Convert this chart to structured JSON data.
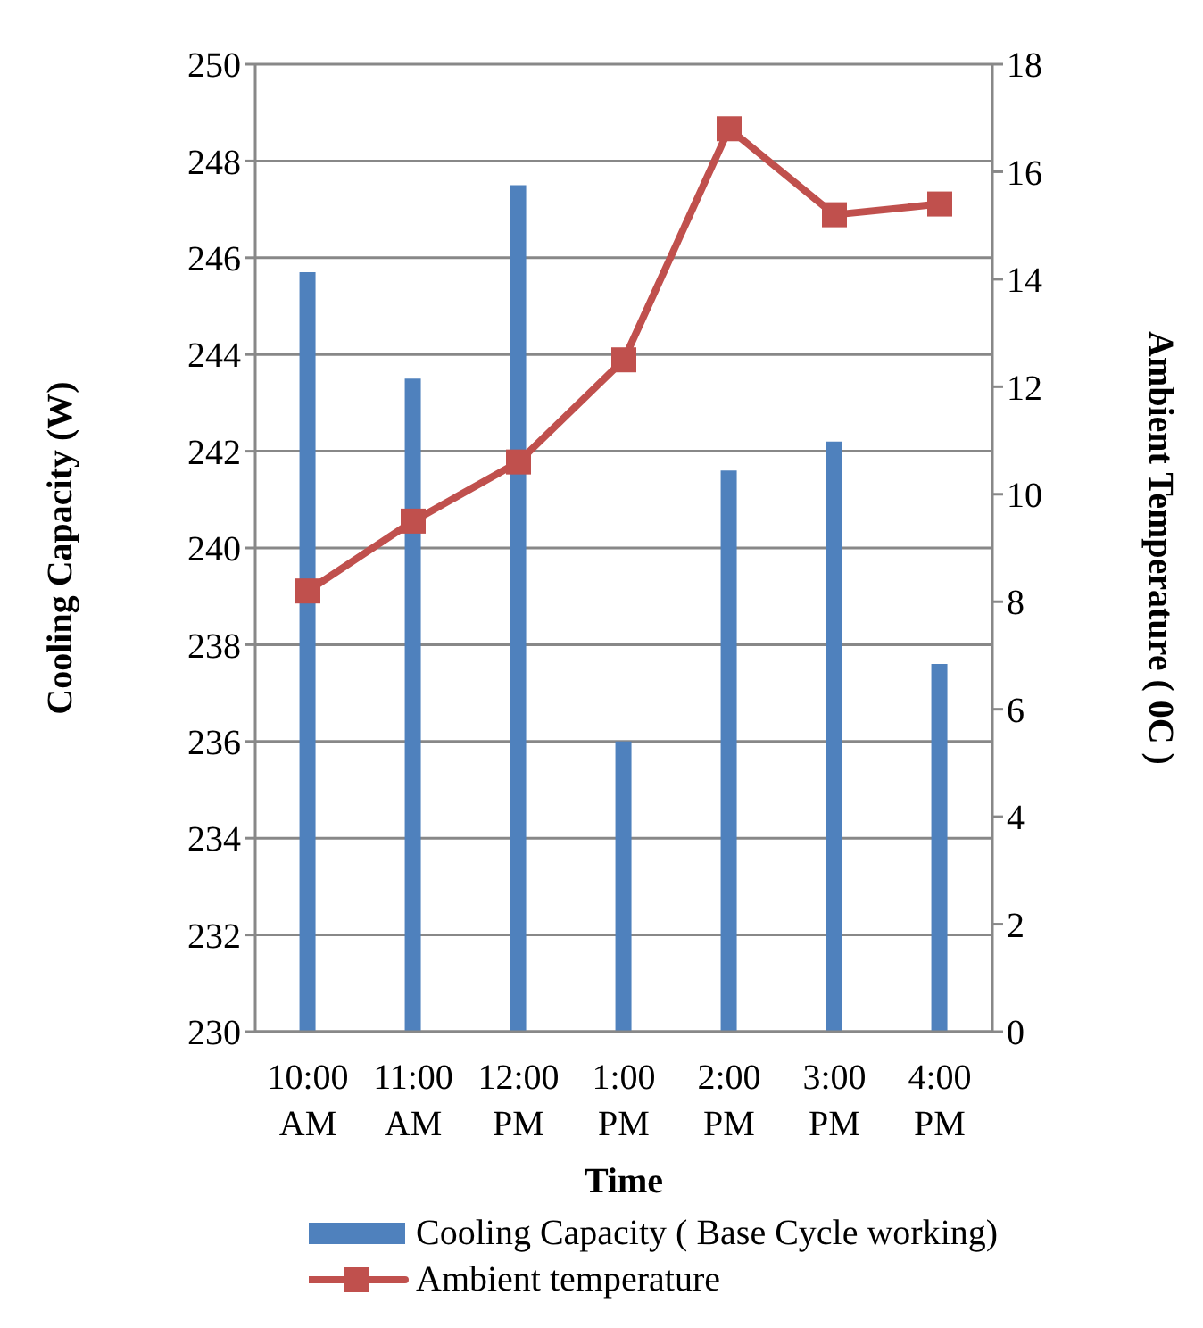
{
  "chart_data": {
    "type": "bar",
    "xlabel": "Time",
    "ylabel": "Cooling Capacity (W)",
    "y2label": "Ambient  Temperature ( 0C )",
    "categories": [
      "10:00 AM",
      "11:00 AM",
      "12:00 PM",
      "1:00 PM",
      "2:00 PM",
      "3:00 PM",
      "4:00 PM"
    ],
    "series": [
      {
        "name": "Cooling Capacity ( Base Cycle working)",
        "color": "#4f81bd",
        "values": [
          245.7,
          243.5,
          247.5,
          236.0,
          241.6,
          242.2,
          237.6
        ]
      },
      {
        "name": "Ambient temperature",
        "type": "line",
        "axis": "y2",
        "color": "#c0504d",
        "marker": "square",
        "values": [
          8.2,
          9.5,
          10.6,
          12.5,
          16.8,
          15.2,
          15.4
        ]
      }
    ],
    "ylim": [
      230,
      250
    ],
    "yticks": [
      230,
      232,
      234,
      236,
      238,
      240,
      242,
      244,
      246,
      248,
      250
    ],
    "y2lim": [
      0,
      18
    ],
    "y2ticks": [
      0,
      2,
      4,
      6,
      8,
      10,
      12,
      14,
      16,
      18
    ],
    "grid": "y",
    "legend": "bottom"
  }
}
